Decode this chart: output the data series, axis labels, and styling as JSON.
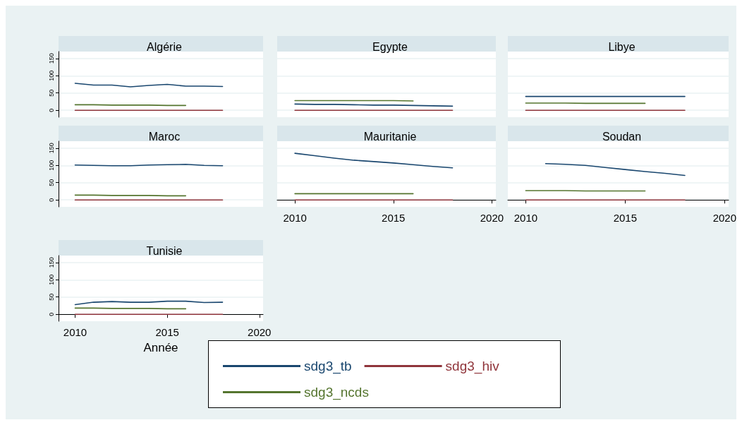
{
  "chart_data": [
    {
      "type": "line",
      "title": "Algérie",
      "xlim": [
        2009.1,
        2020.2
      ],
      "xticks": [
        2010,
        2015,
        2020
      ],
      "ylim": [
        -20,
        170
      ],
      "yticks": [
        0,
        50,
        100,
        150
      ],
      "grid": "y",
      "tick_labels": "y",
      "series": [
        {
          "color": "#1a476f",
          "x": [
            2010,
            2011,
            2012,
            2013,
            2014,
            2015,
            2016,
            2017,
            2018
          ],
          "values": [
            78,
            73,
            73,
            68,
            72,
            75,
            70,
            70,
            69
          ]
        },
        {
          "color": "#90353b",
          "x": [
            2010,
            2011,
            2012,
            2013,
            2014,
            2015,
            2016,
            2017,
            2018
          ],
          "values": [
            0,
            0,
            0,
            0,
            0,
            0,
            0,
            0,
            0
          ]
        },
        {
          "color": "#55752f",
          "x": [
            2010,
            2011,
            2012,
            2013,
            2014,
            2015,
            2016
          ],
          "values": [
            16,
            16,
            15,
            15,
            15,
            14,
            14
          ]
        }
      ]
    },
    {
      "type": "line",
      "title": "Egypte",
      "xlim": [
        2009.1,
        2020.2
      ],
      "xticks": [
        2010,
        2015,
        2020
      ],
      "ylim": [
        -20,
        170
      ],
      "yticks": [
        0,
        50,
        100,
        150
      ],
      "grid": "y",
      "tick_labels": false,
      "series": [
        {
          "color": "#1a476f",
          "x": [
            2010,
            2011,
            2012,
            2013,
            2014,
            2015,
            2016,
            2017,
            2018
          ],
          "values": [
            18,
            17,
            17,
            16,
            15,
            15,
            14,
            13,
            12
          ]
        },
        {
          "color": "#90353b",
          "x": [
            2010,
            2011,
            2012,
            2013,
            2014,
            2015,
            2016,
            2017,
            2018
          ],
          "values": [
            0,
            0,
            0,
            0,
            0,
            0,
            0,
            0,
            0
          ]
        },
        {
          "color": "#55752f",
          "x": [
            2010,
            2011,
            2012,
            2013,
            2014,
            2015,
            2016
          ],
          "values": [
            28,
            28,
            28,
            28,
            28,
            28,
            27
          ]
        }
      ]
    },
    {
      "type": "line",
      "title": "Libye",
      "xlim": [
        2009.1,
        2020.2
      ],
      "xticks": [
        2010,
        2015,
        2020
      ],
      "ylim": [
        -20,
        170
      ],
      "yticks": [
        0,
        50,
        100,
        150
      ],
      "grid": "y",
      "tick_labels": false,
      "series": [
        {
          "color": "#1a476f",
          "x": [
            2010,
            2011,
            2012,
            2013,
            2014,
            2015,
            2016,
            2017,
            2018
          ],
          "values": [
            40,
            40,
            40,
            40,
            40,
            40,
            40,
            40,
            40
          ]
        },
        {
          "color": "#90353b",
          "x": [
            2010,
            2011,
            2012,
            2013,
            2014,
            2015,
            2016,
            2017,
            2018
          ],
          "values": [
            0,
            0,
            0,
            0,
            0,
            0,
            0,
            0,
            0
          ]
        },
        {
          "color": "#55752f",
          "x": [
            2010,
            2011,
            2012,
            2013,
            2014,
            2015,
            2016
          ],
          "values": [
            21,
            21,
            21,
            20,
            20,
            20,
            20
          ]
        }
      ]
    },
    {
      "type": "line",
      "title": "Maroc",
      "xlim": [
        2009.1,
        2020.2
      ],
      "xticks": [
        2010,
        2015,
        2020
      ],
      "ylim": [
        -20,
        170
      ],
      "yticks": [
        0,
        50,
        100,
        150
      ],
      "grid": "y",
      "tick_labels": "y",
      "series": [
        {
          "color": "#1a476f",
          "x": [
            2010,
            2011,
            2012,
            2013,
            2014,
            2015,
            2016,
            2017,
            2018
          ],
          "values": [
            101,
            100,
            99,
            99,
            101,
            102,
            103,
            100,
            99
          ]
        },
        {
          "color": "#90353b",
          "x": [
            2010,
            2011,
            2012,
            2013,
            2014,
            2015,
            2016,
            2017,
            2018
          ],
          "values": [
            0,
            0,
            0,
            0,
            0,
            0,
            0,
            0,
            0
          ]
        },
        {
          "color": "#55752f",
          "x": [
            2010,
            2011,
            2012,
            2013,
            2014,
            2015,
            2016
          ],
          "values": [
            14,
            14,
            13,
            13,
            13,
            12,
            12
          ]
        }
      ]
    },
    {
      "type": "line",
      "title": "Mauritanie",
      "xlim": [
        2009.1,
        2020.2
      ],
      "xticks": [
        2010,
        2015,
        2020
      ],
      "ylim": [
        -20,
        170
      ],
      "yticks": [
        0,
        50,
        100,
        150
      ],
      "grid": "y",
      "tick_labels": "x",
      "series": [
        {
          "color": "#1a476f",
          "x": [
            2010,
            2011,
            2012,
            2013,
            2014,
            2015,
            2016,
            2017,
            2018
          ],
          "values": [
            135,
            128,
            121,
            115,
            111,
            107,
            102,
            97,
            93
          ]
        },
        {
          "color": "#90353b",
          "x": [
            2010,
            2011,
            2012,
            2013,
            2014,
            2015,
            2016,
            2017,
            2018
          ],
          "values": [
            0,
            0,
            0,
            0,
            0,
            0,
            0,
            0,
            0
          ]
        },
        {
          "color": "#55752f",
          "x": [
            2010,
            2011,
            2012,
            2013,
            2014,
            2015,
            2016
          ],
          "values": [
            18,
            18,
            18,
            18,
            18,
            18,
            18
          ]
        }
      ]
    },
    {
      "type": "line",
      "title": "Soudan",
      "xlim": [
        2009.1,
        2020.2
      ],
      "xticks": [
        2010,
        2015,
        2020
      ],
      "ylim": [
        -20,
        170
      ],
      "yticks": [
        0,
        50,
        100,
        150
      ],
      "grid": "y",
      "tick_labels": "x",
      "series": [
        {
          "color": "#1a476f",
          "x": [
            2011,
            2012,
            2013,
            2014,
            2015,
            2016,
            2017,
            2018
          ],
          "values": [
            105,
            103,
            100,
            94,
            88,
            82,
            77,
            71
          ]
        },
        {
          "color": "#90353b",
          "x": [
            2010,
            2011,
            2012,
            2013,
            2014,
            2015,
            2016,
            2017,
            2018
          ],
          "values": [
            0,
            0,
            0,
            0,
            0,
            0,
            0,
            0,
            0
          ]
        },
        {
          "color": "#55752f",
          "x": [
            2010,
            2011,
            2012,
            2013,
            2014,
            2015,
            2016
          ],
          "values": [
            27,
            27,
            27,
            26,
            26,
            26,
            26
          ]
        }
      ]
    },
    {
      "type": "line",
      "title": "Tunisie",
      "xlabel": "Année",
      "legend": "bottom",
      "xlim": [
        2009.1,
        2020.2
      ],
      "xticks": [
        2010,
        2015,
        2020
      ],
      "ylim": [
        -20,
        170
      ],
      "yticks": [
        0,
        50,
        100,
        150
      ],
      "grid": "y",
      "series": [
        {
          "name": "sdg3_tb",
          "color": "#1a476f",
          "x": [
            2010,
            2011,
            2012,
            2013,
            2014,
            2015,
            2016,
            2017,
            2018
          ],
          "values": [
            28,
            35,
            37,
            35,
            35,
            38,
            38,
            34,
            35
          ]
        },
        {
          "name": "sdg3_hiv",
          "color": "#90353b",
          "x": [
            2010,
            2011,
            2012,
            2013,
            2014,
            2015,
            2016,
            2017,
            2018
          ],
          "values": [
            0,
            0,
            0,
            0,
            0,
            0,
            0,
            0,
            0
          ]
        },
        {
          "name": "sdg3_ncds",
          "color": "#55752f",
          "x": [
            2010,
            2011,
            2012,
            2013,
            2014,
            2015,
            2016
          ],
          "values": [
            18,
            18,
            17,
            17,
            17,
            16,
            16
          ]
        }
      ]
    }
  ]
}
